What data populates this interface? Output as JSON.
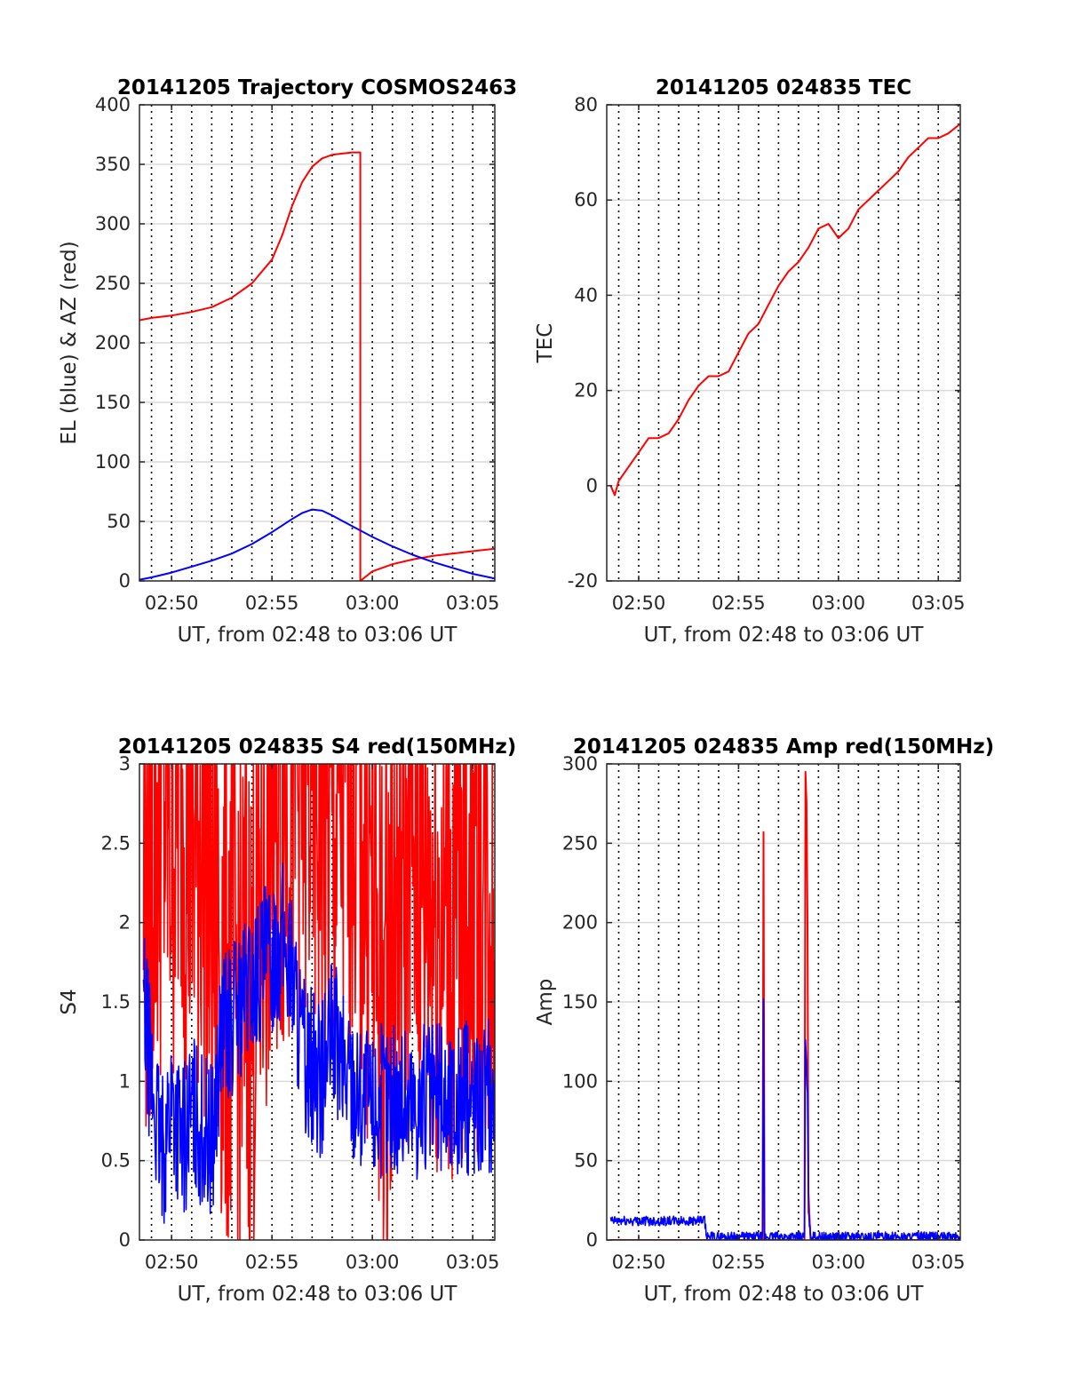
{
  "colors": {
    "red_series": "#ff0000",
    "blue_series": "#0000ff",
    "grid": "#dadada",
    "axis": "#262626"
  },
  "chart_data": [
    {
      "id": "trajectory",
      "type": "line",
      "title": "20141205 Trajectory COSMOS2463",
      "xlabel": "UT, from 02:48 to 03:06 UT",
      "ylabel": "EL (blue) & AZ (red)",
      "x_unit": "minutes since 02:48 UT",
      "xlim": [
        0.4,
        18.1
      ],
      "ylim": [
        0,
        400
      ],
      "yticks": [
        0,
        50,
        100,
        150,
        200,
        250,
        300,
        350,
        400
      ],
      "xticks": [
        2,
        7,
        12,
        17
      ],
      "xtick_labels": [
        "02:50",
        "02:55",
        "03:00",
        "03:05"
      ],
      "minor_dotted_grid_minutes": [
        1,
        2,
        3,
        4,
        5,
        6,
        7,
        8,
        9,
        10,
        11,
        12,
        13,
        14,
        15,
        16,
        17,
        18
      ],
      "grid": true,
      "series": [
        {
          "name": "AZ",
          "color": "#ff0000",
          "x": [
            0.4,
            1,
            2,
            3,
            4,
            5,
            6,
            7,
            7.5,
            8,
            8.5,
            9,
            9.5,
            10,
            10.5,
            11,
            11.4,
            11.4,
            12,
            13,
            14,
            15,
            16,
            17,
            18.1
          ],
          "y": [
            219,
            221,
            223,
            226,
            230,
            238,
            250,
            270,
            290,
            315,
            335,
            348,
            355,
            358,
            359,
            360,
            360,
            0,
            8,
            14,
            18,
            21,
            23,
            25,
            27
          ]
        },
        {
          "name": "EL",
          "color": "#0000ff",
          "x": [
            0.4,
            1,
            2,
            3,
            4,
            5,
            6,
            7,
            8,
            8.5,
            9,
            9.5,
            10,
            11,
            12,
            13,
            14,
            15,
            16,
            17,
            18.1
          ],
          "y": [
            1,
            3,
            7,
            12,
            17,
            23,
            31,
            41,
            52,
            57,
            60,
            59,
            55,
            46,
            37,
            29,
            22,
            16,
            11,
            6,
            2
          ]
        }
      ]
    },
    {
      "id": "tec",
      "type": "line",
      "title": "20141205 024835 TEC",
      "xlabel": "UT, from 02:48 to 03:06 UT",
      "ylabel": "TEC",
      "x_unit": "minutes since 02:48 UT",
      "xlim": [
        0.4,
        18.1
      ],
      "ylim": [
        -20,
        80
      ],
      "yticks": [
        -20,
        0,
        20,
        40,
        60,
        80
      ],
      "xticks": [
        2,
        7,
        12,
        17
      ],
      "xtick_labels": [
        "02:50",
        "02:55",
        "03:00",
        "03:05"
      ],
      "minor_dotted_grid_minutes": [
        1,
        2,
        3,
        4,
        5,
        6,
        7,
        8,
        9,
        10,
        11,
        12,
        13,
        14,
        15,
        16,
        17,
        18
      ],
      "grid": true,
      "series": [
        {
          "color": "#ff0000",
          "x": [
            0.6,
            0.8,
            1,
            1.5,
            2,
            2.5,
            3,
            3.5,
            4,
            4.5,
            5,
            5.5,
            6,
            6.5,
            7,
            7.5,
            8,
            8.5,
            9,
            9.5,
            10,
            10.5,
            11,
            11.5,
            12,
            12.5,
            13,
            13.5,
            14,
            14.5,
            15,
            15.5,
            16,
            16.5,
            17,
            17.5,
            18.1
          ],
          "y": [
            0,
            -2,
            1,
            4,
            7,
            10,
            10,
            11,
            14,
            18,
            21,
            23,
            23,
            24,
            28,
            32,
            34,
            38,
            42,
            45,
            47,
            50,
            54,
            55,
            52,
            54,
            58,
            60,
            62,
            64,
            66,
            69,
            71,
            73,
            73,
            74,
            76
          ]
        }
      ]
    },
    {
      "id": "s4",
      "type": "line",
      "title": "20141205 024835 S4 red(150MHz)",
      "xlabel": "UT, from 02:48 to 03:06 UT",
      "ylabel": "S4",
      "x_unit": "minutes since 02:48 UT",
      "xlim": [
        0.4,
        18.1
      ],
      "ylim": [
        0,
        3
      ],
      "yticks": [
        0,
        0.5,
        1,
        1.5,
        2,
        2.5,
        3
      ],
      "ytick_labels": [
        "0",
        "0.5",
        "1",
        "1.5",
        "2",
        "2.5",
        "3"
      ],
      "xticks": [
        2,
        7,
        12,
        17
      ],
      "xtick_labels": [
        "02:50",
        "02:55",
        "03:00",
        "03:05"
      ],
      "minor_dotted_grid_minutes": [
        1,
        2,
        3,
        4,
        5,
        6,
        7,
        8,
        9,
        10,
        11,
        12,
        13,
        14,
        15,
        16,
        17,
        18
      ],
      "grid": true,
      "series": [
        {
          "color": "#ff0000",
          "x": [
            0.6,
            1,
            1.5,
            2,
            2.5,
            3,
            3.5,
            4,
            5,
            6,
            7,
            8,
            9,
            10,
            11,
            12,
            12.5,
            13,
            14,
            15,
            16,
            17,
            18.1
          ],
          "y": [
            2.2,
            2.5,
            2.8,
            2.6,
            3.0,
            2.4,
            2.7,
            2.0,
            1.6,
            1.5,
            2.8,
            3.0,
            2.9,
            2.5,
            3.0,
            2.2,
            1.5,
            2.0,
            2.5,
            2.2,
            2.0,
            2.4,
            2.0
          ],
          "noise_amplitude": 1.8
        },
        {
          "color": "#0000ff",
          "x": [
            0.6,
            1,
            1.5,
            2,
            2.5,
            3,
            3.5,
            4,
            4.5,
            5,
            5.5,
            6,
            6.5,
            7,
            7.5,
            8,
            8.5,
            9,
            9.5,
            10,
            10.5,
            11,
            11.5,
            12,
            13,
            14,
            15,
            16,
            17,
            18.1
          ],
          "y": [
            1.5,
            1.0,
            0.5,
            0.9,
            0.6,
            0.8,
            0.7,
            0.6,
            1.3,
            1.4,
            1.5,
            1.6,
            1.7,
            1.8,
            1.9,
            1.7,
            1.2,
            1.1,
            1.0,
            1.3,
            1.1,
            1.0,
            0.9,
            0.85,
            0.9,
            0.85,
            0.9,
            0.85,
            0.9,
            0.9
          ],
          "noise_amplitude": 0.5
        }
      ]
    },
    {
      "id": "amp",
      "type": "line",
      "title": "20141205 024835 Amp red(150MHz)",
      "xlabel": "UT, from 02:48 to 03:06 UT",
      "ylabel": "Amp",
      "x_unit": "minutes since 02:48 UT",
      "xlim": [
        0.4,
        18.1
      ],
      "ylim": [
        0,
        300
      ],
      "yticks": [
        0,
        50,
        100,
        150,
        200,
        250,
        300
      ],
      "xticks": [
        2,
        7,
        12,
        17
      ],
      "xtick_labels": [
        "02:50",
        "02:55",
        "03:00",
        "03:05"
      ],
      "minor_dotted_grid_minutes": [
        1,
        2,
        3,
        4,
        5,
        6,
        7,
        8,
        9,
        10,
        11,
        12,
        13,
        14,
        15,
        16,
        17,
        18
      ],
      "grid": true,
      "series": [
        {
          "color": "#ff0000",
          "x": [
            0.6,
            5.3,
            5.4,
            8.2,
            8.25,
            8.3,
            8.4,
            10.3,
            10.35,
            10.4,
            10.45,
            10.5,
            10.6,
            18.1
          ],
          "y": [
            0,
            0,
            0,
            0,
            257,
            0,
            0,
            0,
            295,
            276,
            200,
            30,
            0,
            0
          ]
        },
        {
          "color": "#0000ff",
          "x": [
            0.6,
            5.3,
            5.4,
            8.2,
            8.25,
            8.3,
            8.4,
            10.3,
            10.35,
            10.4,
            10.45,
            10.5,
            10.6,
            18.1
          ],
          "y": [
            12,
            12,
            2,
            2,
            150,
            2,
            2,
            2,
            125,
            110,
            90,
            20,
            2,
            2
          ],
          "noise_amplitude": 3
        }
      ]
    }
  ]
}
